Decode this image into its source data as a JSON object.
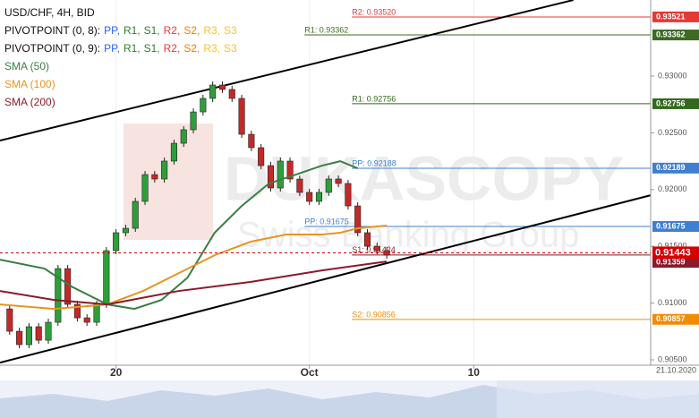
{
  "chart_data": {
    "type": "candlestick",
    "title": "USD/CHF, 4H, BID",
    "watermark": [
      "DUKASCOPY",
      "Swiss Banking Group"
    ],
    "date_label": "21.10.2020",
    "xlim": [
      0,
      67.3
    ],
    "ylim": [
      0.90453,
      0.9367
    ],
    "xticks": [
      {
        "value": 12,
        "label": "20"
      },
      {
        "value": 32,
        "label": "Oct"
      },
      {
        "value": 49,
        "label": "10"
      }
    ],
    "yticks": [
      {
        "value": 0.93,
        "label": "0.93000"
      },
      {
        "value": 0.925,
        "label": "0.92500"
      },
      {
        "value": 0.92,
        "label": "0.92000"
      },
      {
        "value": 0.915,
        "label": "0.91500"
      },
      {
        "value": 0.91,
        "label": "0.91000"
      },
      {
        "value": 0.905,
        "label": "0.90500"
      }
    ],
    "indicators": [
      {
        "name": "PIVOTPOINT (0, 8):",
        "parts": [
          {
            "text": "PP,",
            "color": "#2962ff"
          },
          {
            "text": "R1,",
            "color": "#2e7d32"
          },
          {
            "text": "S1,",
            "color": "#2e7d32"
          },
          {
            "text": "R2,",
            "color": "#e53935"
          },
          {
            "text": "S2,",
            "color": "#f57c00"
          },
          {
            "text": "R3,",
            "color": "#fbc02d"
          },
          {
            "text": "S3",
            "color": "#fbc02d"
          }
        ],
        "levels": [
          {
            "label": "R2: 0.93520",
            "value": 0.9352,
            "color": "#e53935",
            "tag": {
              "value": 0.93521,
              "label": "0.93521"
            }
          },
          {
            "label": "R1: 0.92756",
            "value": 0.92756,
            "color": "#33691e",
            "tag": {
              "value": 0.92756,
              "label": "0.92756"
            }
          },
          {
            "label": "PP: 0.92188",
            "value": 0.92188,
            "color": "#3f7fd0",
            "tag": {
              "value": 0.92189,
              "label": "0.92189"
            }
          },
          {
            "label": "S1: 0.91424",
            "value": 0.91424,
            "color": "#7b1f1f"
          },
          {
            "label": "S2: 0.90856",
            "value": 0.90856,
            "color": "#f08c00",
            "tag": {
              "value": 0.90857,
              "label": "0.90857"
            }
          }
        ]
      },
      {
        "name": "PIVOTPOINT (0, 9):",
        "parts": [
          {
            "text": "PP,",
            "color": "#2962ff"
          },
          {
            "text": "R1,",
            "color": "#2e7d32"
          },
          {
            "text": "S1,",
            "color": "#2e7d32"
          },
          {
            "text": "R2,",
            "color": "#e53935"
          },
          {
            "text": "S2,",
            "color": "#f57c00"
          },
          {
            "text": "R3,",
            "color": "#fbc02d"
          },
          {
            "text": "S3",
            "color": "#fbc02d"
          }
        ],
        "levels": [
          {
            "label": "R1: 0.93362",
            "value": 0.93362,
            "color": "#3d6b22",
            "tag": {
              "value": 0.93362,
              "label": "0.93362"
            }
          },
          {
            "label": "PP: 0.91675",
            "value": 0.91675,
            "color": "#3f7fd0",
            "tag": {
              "value": 0.91675,
              "label": "0.91675"
            }
          }
        ]
      }
    ],
    "series": [
      {
        "name": "Price",
        "up_color": "#2e9e3a",
        "down_color": "#c62828",
        "x": [
          0,
          1,
          2,
          3,
          4,
          5,
          6,
          7,
          8,
          9,
          10,
          11,
          12,
          13,
          14,
          15,
          16,
          17,
          18,
          19,
          20,
          21,
          22,
          23,
          24,
          25,
          26,
          27,
          28,
          29,
          30,
          31,
          32,
          33,
          34,
          35,
          36,
          37,
          38,
          39,
          40
        ],
        "values": [
          0.90949,
          0.90752,
          0.90634,
          0.90792,
          0.90673,
          0.90831,
          0.91304,
          0.90989,
          0.9087,
          0.90831,
          0.90989,
          0.91462,
          0.9162,
          0.91659,
          0.91896,
          0.92132,
          0.92093,
          0.92251,
          0.92408,
          0.92527,
          0.92684,
          0.92803,
          0.92921,
          0.92882,
          0.92803,
          0.92487,
          0.92369,
          0.92211,
          0.92014,
          0.92251,
          0.92093,
          0.91975,
          0.91896,
          0.91975,
          0.92093,
          0.92054,
          0.91856,
          0.9162,
          0.91501,
          0.91462,
          0.91423
        ]
      },
      {
        "name": "SMA (50)",
        "color": "#3a7d44",
        "x": [
          0,
          4.6,
          7.4,
          11.1,
          13.9,
          16.7,
          19.4,
          22.2,
          25,
          27.8,
          30.6,
          33.3,
          35.2,
          37
        ],
        "values": [
          0.91383,
          0.91304,
          0.91146,
          0.90988,
          0.90949,
          0.91028,
          0.91225,
          0.9162,
          0.91856,
          0.92053,
          0.92132,
          0.92211,
          0.9225,
          0.92187
        ]
      },
      {
        "name": "SMA (100)",
        "color": "#e69520",
        "x": [
          0,
          5.6,
          11.1,
          14.8,
          18.5,
          22.2,
          25.9,
          29.6,
          33.3,
          35.2,
          37,
          40
        ],
        "values": [
          0.90988,
          0.90949,
          0.90988,
          0.91107,
          0.91264,
          0.91422,
          0.9154,
          0.91604,
          0.91604,
          0.9162,
          0.91659,
          0.91683
        ]
      },
      {
        "name": "SMA (200)",
        "color": "#8b1a2a",
        "x": [
          0,
          5.6,
          11.1,
          18.5,
          25.9,
          33.3,
          40
        ],
        "values": [
          0.91107,
          0.91028,
          0.90988,
          0.91107,
          0.91186,
          0.91288,
          0.91367
        ],
        "last_label": {
          "value": 0.91359,
          "label": "0.91359"
        }
      }
    ],
    "trendlines": [
      {
        "x": [
          0,
          59.3
        ],
        "values": [
          0.92432,
          0.9367
        ]
      },
      {
        "x": [
          0,
          67.3
        ],
        "values": [
          0.90475,
          0.9195
        ]
      }
    ],
    "last_price": {
      "value": 0.91443,
      "label": "0.91443",
      "color": "#d50000"
    }
  }
}
